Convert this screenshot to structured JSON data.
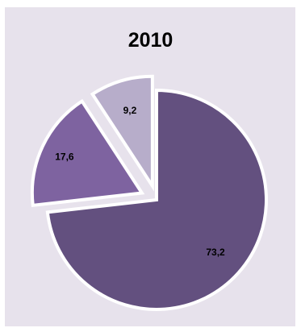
{
  "chart_data": {
    "type": "pie",
    "title": "2010",
    "slices": [
      {
        "label": "73,2",
        "value": 73.2,
        "color": "#63507f"
      },
      {
        "label": "17,6",
        "value": 17.6,
        "color": "#7e63a0"
      },
      {
        "label": "9,2",
        "value": 9.2,
        "color": "#b7adca"
      }
    ],
    "legend": "none",
    "exploded": true
  }
}
